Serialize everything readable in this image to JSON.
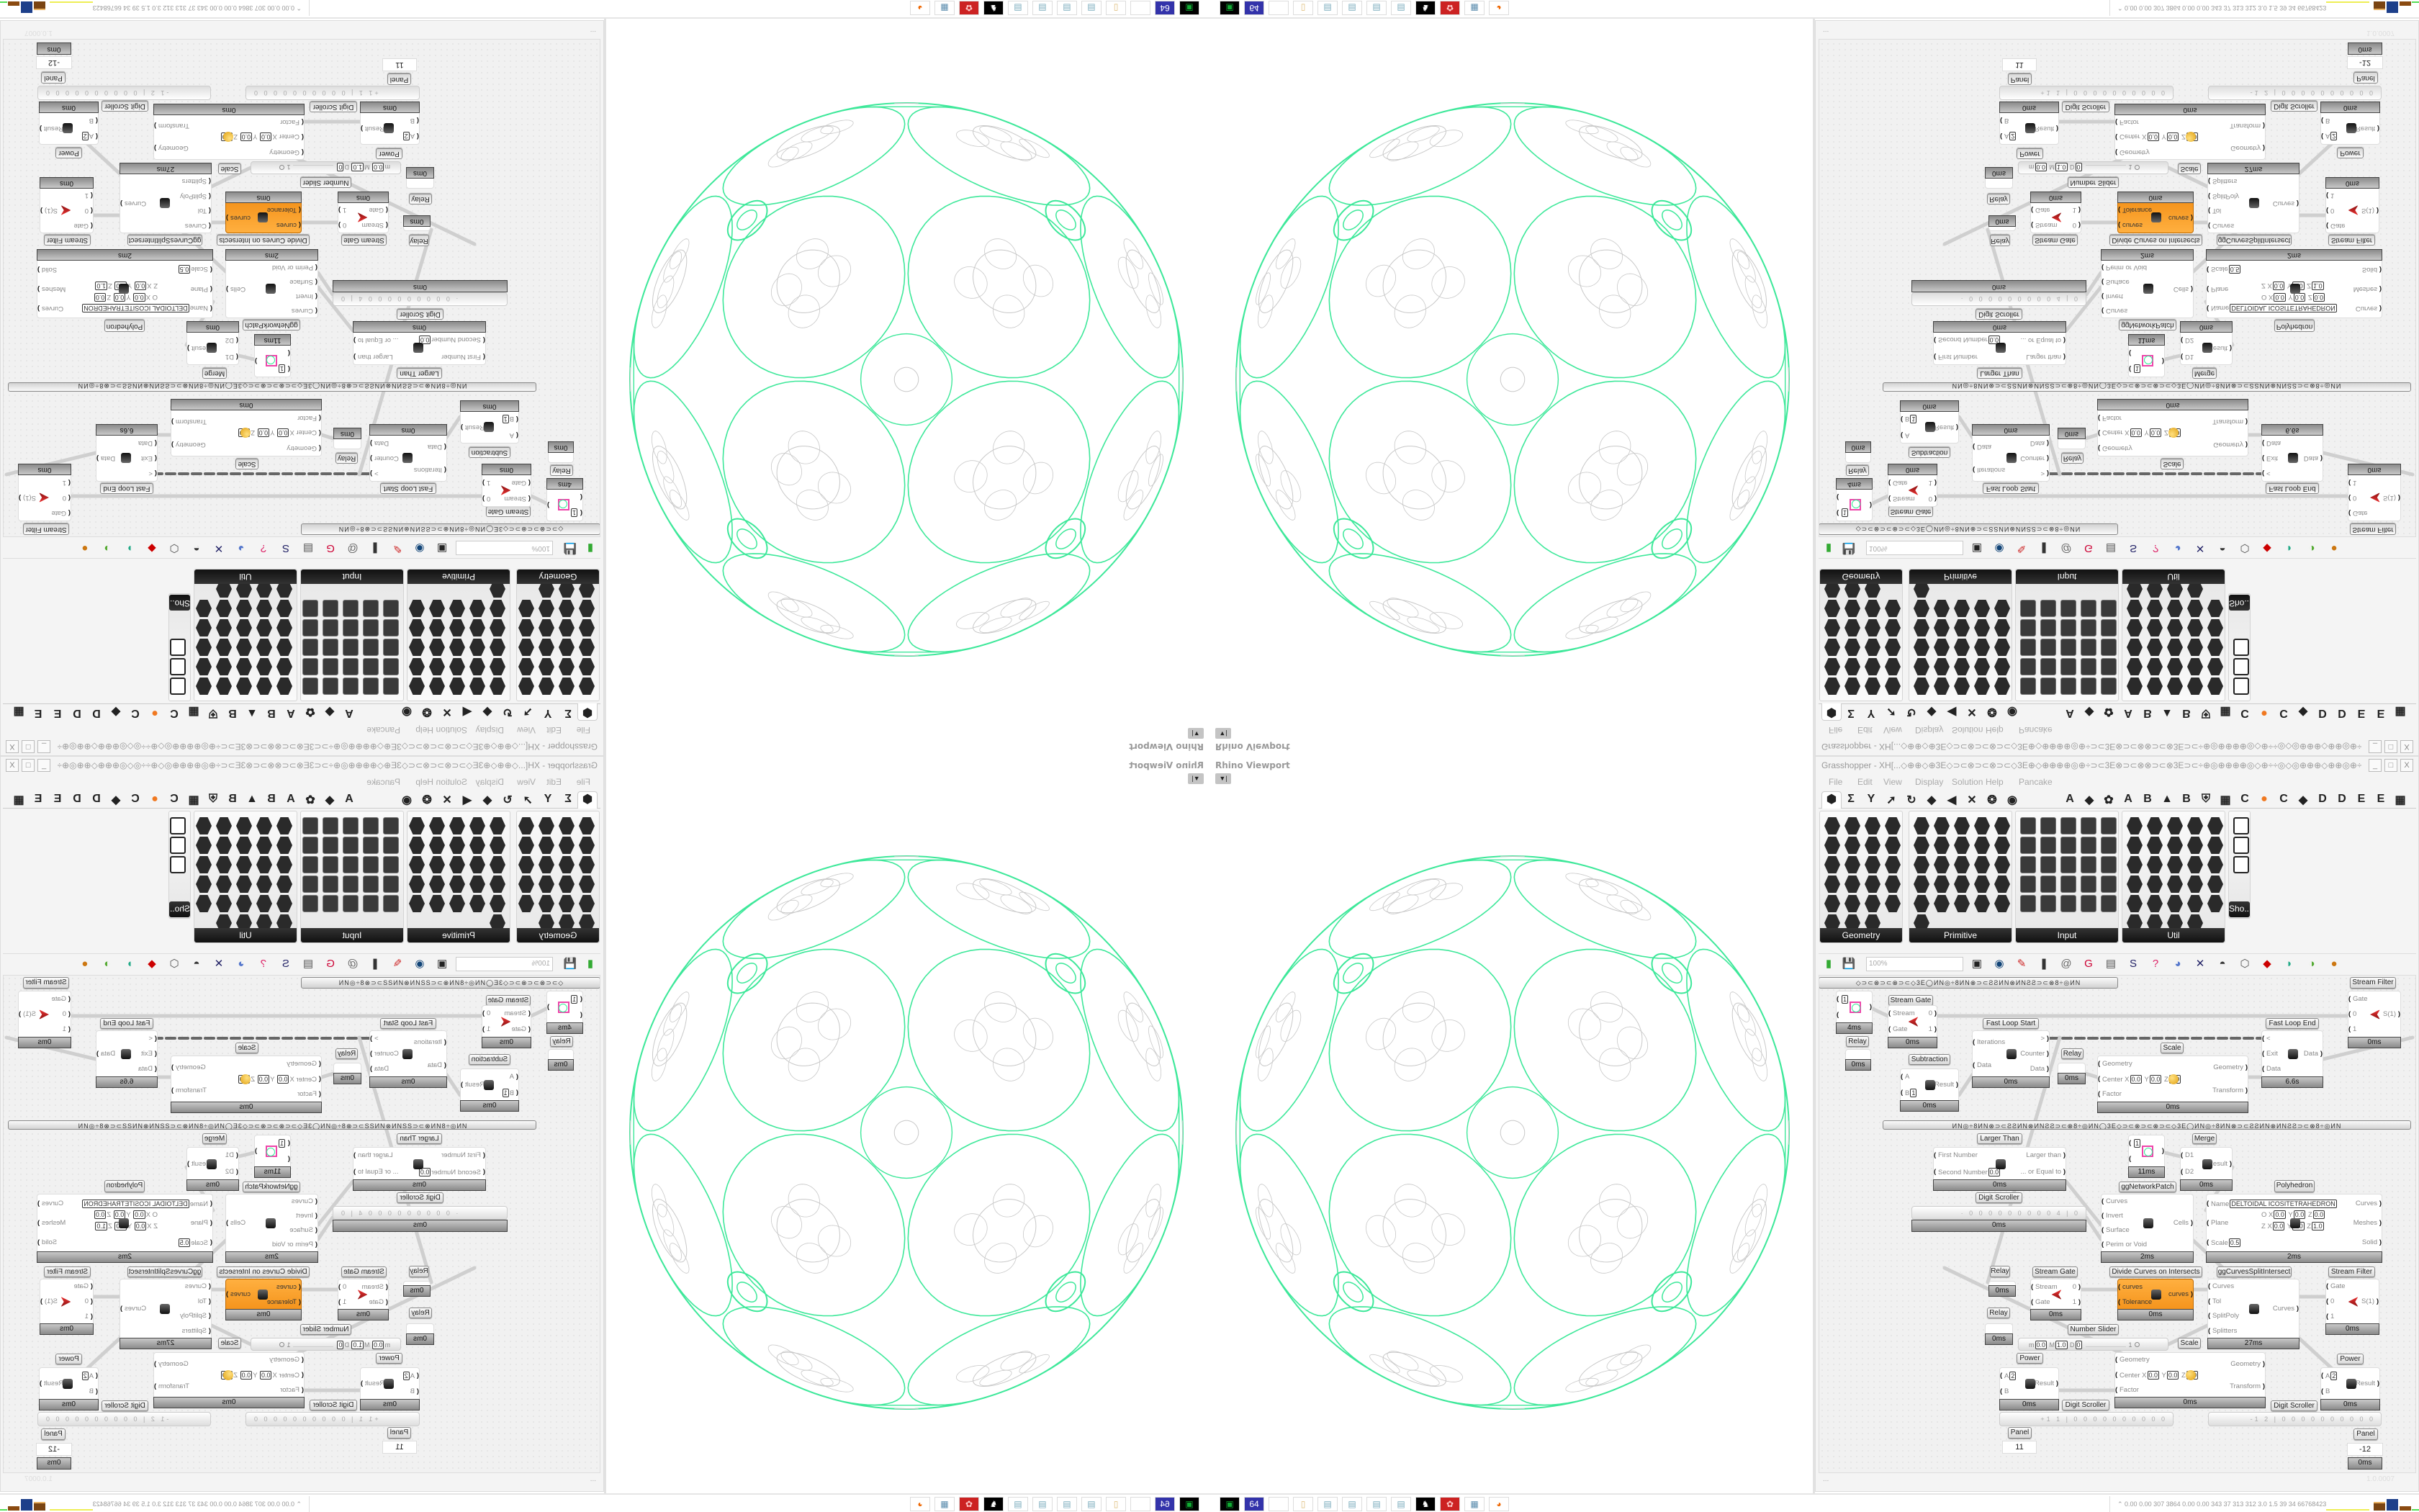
{
  "rhino": {
    "viewport_title": "Rhino Viewport",
    "dropdown_icon": "caret-down-icon",
    "colors": {
      "network_curves": "#3ee89a",
      "detail_curves": "#c8c8c8"
    }
  },
  "gh": {
    "title": "Grasshopper - XH[...◇⊕⊕◇⊕3E◇⊃⊂⊗⊃⊂⊗⊃⊂◇3E⊕◇⊕⊕⊕⊕◎⊕÷⊃⊂3E⊗⊃⊂⊗⊗⊃⊂⊗3E⊃⊂÷⊕◎⊕⊕⊕⊕◎◇⊕÷÷◎◇◎⊕⊕⊕◇⊕⊕◎⊕÷⊃⊂3E⊗⊃⊂...",
    "window_buttons": [
      "_",
      "□",
      "X"
    ],
    "menu": [
      "File",
      "Edit",
      "View",
      "Display",
      "Solution",
      "Help",
      "Pancake"
    ],
    "tabs_left": [
      "⬢",
      "Σ",
      "Y",
      "➚",
      "↻",
      "◆",
      "◀",
      "✕",
      "❂",
      "◉"
    ],
    "tabs_right": [
      "A",
      "◆",
      "✿",
      "A",
      "B",
      "▲",
      "B",
      "⛨",
      "▦",
      "C",
      "●",
      "C",
      "◆",
      "D",
      "D",
      "E",
      "E",
      "▦"
    ],
    "accent_tab_color": "#f07820",
    "panels": [
      {
        "label": "Geometry",
        "icon_count": 23
      },
      {
        "label": "Primitive",
        "icon_count": 26
      },
      {
        "label": "Input",
        "icon_count": 25
      },
      {
        "label": "Util",
        "icon_count": 29
      },
      {
        "label": "Sho..."
      }
    ],
    "toolbar": {
      "zoom": "100%"
    },
    "status": {
      "left": "...",
      "right": "1.0.0007"
    }
  },
  "canvas": {
    "group_bars": [
      "◇⊃⊂⊗⊃⊂⊗⊃⊂◇3E◯ИN◎÷8ИN⊗⊃⊂ƧƧИN⊗ИNƧƧ⊃⊂⊗8÷◎ИN",
      "ИN◎÷8ИN⊗⊃⊂ƧƧИN⊗ИNƧƧ⊃⊂⊗8÷◎ИN◯3E◇⊃⊂⊗⊃⊂⊗⊃⊂◇3E◯ИN◎÷8ИN⊗⊃⊂ƧƧИN⊗ИNƧƧ⊃⊂⊗8÷◎ИN"
    ],
    "labels": [
      "Stream Gate",
      "Fast Loop Start",
      "Fast Loop End",
      "Stream Filter",
      "Relay",
      "Subtraction",
      "Relay",
      "Scale",
      "Larger Than",
      "ggNetworkPatch",
      "Merge",
      "Polyhedron",
      "Digit Scroller",
      "Relay",
      "Stream Gate",
      "Divide Curves on Intersects",
      "ggCurvesSplitIntersect",
      "Stream Filter",
      "Relay",
      "Number Slider",
      "Scale",
      "Power",
      "Power",
      "Digit Scroller",
      "Digit Scroller",
      "Panel",
      "Panel"
    ],
    "components": [
      {
        "in": [
          {
            "l": "",
            "v": "1"
          },
          ""
        ],
        "out": [
          ""
        ],
        "time": "4ms",
        "icon": "preview-swatch-icon"
      },
      {
        "in": [
          "Stream",
          "Gate"
        ],
        "out": [
          "0",
          "1"
        ],
        "time": "0ms",
        "icon": "stream-gate-icon"
      },
      {
        "in": [],
        "out": [],
        "time": "0ms",
        "icon": "relay-icon"
      },
      {
        "in": [
          "Iterations",
          "Data"
        ],
        "out": [
          ">",
          "Counter",
          "Data"
        ],
        "time": "0ms",
        "icon": "loop-start-icon"
      },
      {
        "in": [
          "A",
          {
            "l": "B",
            "v": "1"
          }
        ],
        "out": [
          "Result"
        ],
        "time": "0ms",
        "icon": "minus-icon"
      },
      {
        "in": [],
        "out": [],
        "time": "0ms",
        "icon": "relay-icon"
      },
      {
        "in": [
          "Geometry",
          {
            "l": "Center",
            "xyz": [
              "0.0",
              "0.0",
              "0.0"
            ]
          },
          "Factor"
        ],
        "out": [
          "Geometry",
          "Transform"
        ],
        "time": "0ms",
        "icon": "scale-icon"
      },
      {
        "in": [
          "<",
          "Exit",
          "Data"
        ],
        "out": [
          "Data"
        ],
        "time": "6.6s",
        "icon": "loop-end-icon"
      },
      {
        "in": [
          "Gate",
          "0",
          "1"
        ],
        "out": [
          "S(1)"
        ],
        "time": "0ms",
        "icon": "stream-filter-icon"
      },
      {
        "in": [
          "First Number",
          {
            "l": "Second Number",
            "v": "0.0"
          }
        ],
        "out": [
          "Larger than",
          "... or Equal to"
        ],
        "time": "0ms",
        "icon": "greater-than-icon"
      },
      {
        "in": [
          {
            "l": "",
            "v": "1"
          },
          ""
        ],
        "out": [
          ""
        ],
        "time": "11ms",
        "icon": "preview-swatch-icon"
      },
      {
        "in": [
          "D1",
          "D2"
        ],
        "out": [
          "Result"
        ],
        "time": "0ms",
        "icon": "merge-icon"
      },
      {
        "in": [
          "Curves",
          "Invert",
          "Surface",
          "Perim or Void"
        ],
        "out": [
          "Cells"
        ],
        "time": "2ms",
        "icon": "network-patch-icon"
      },
      {
        "in": [
          {
            "l": "Name",
            "v": "DELTOIDAL ICOSITETRAHEDRON"
          },
          {
            "l": "Plane",
            "rows": [
              {
                "axis": "O",
                "xyz": [
                  "0.0",
                  "0.0",
                  "0.0"
                ]
              },
              {
                "axis": "Z",
                "xyz": [
                  "0.0",
                  "0.0",
                  "1.0"
                ]
              }
            ]
          },
          {
            "l": "Scale",
            "v": "0.5"
          }
        ],
        "out": [
          "Curves",
          "Meshes",
          "Solid"
        ],
        "time": "2ms",
        "icon": "polyhedron-icon"
      },
      {
        "in": [
          "Stream",
          "Gate"
        ],
        "out": [
          "0",
          "1"
        ],
        "time": "0ms",
        "icon": "stream-gate-icon"
      },
      {
        "in": [
          "curves",
          "Tolerance"
        ],
        "out": [
          "curves"
        ],
        "time": "0ms",
        "icon": "divide-curves-icon",
        "accent": "#f7941d"
      },
      {
        "in": [
          "Curves",
          "Tol",
          "SplitPoly",
          "Splitters"
        ],
        "out": [
          "Curves"
        ],
        "time": "27ms",
        "icon": "split-intersect-icon"
      },
      {
        "in": [
          "Gate",
          "0",
          "1"
        ],
        "out": [
          "S(1)"
        ],
        "time": "0ms",
        "icon": "stream-filter-icon"
      },
      {
        "in": [],
        "out": [],
        "time": "0ms",
        "icon": "relay-icon"
      },
      {
        "in": [],
        "out": [],
        "time": "0ms",
        "icon": "relay-icon"
      },
      {
        "in": [
          {
            "l": "A",
            "v": "2"
          },
          "B"
        ],
        "out": [
          "Result"
        ],
        "time": "0ms",
        "icon": "power-icon"
      },
      {
        "in": [
          "Geometry",
          {
            "l": "Center",
            "xyz": [
              "0.0",
              "0.0",
              "0.0"
            ]
          },
          "Factor"
        ],
        "out": [
          "Geometry",
          "Transform"
        ],
        "time": "0ms",
        "icon": "scale-icon"
      },
      {
        "in": [
          {
            "l": "A",
            "v": "2"
          },
          "B"
        ],
        "out": [
          "Result"
        ],
        "time": "0ms",
        "icon": "power-icon"
      }
    ],
    "slider": {
      "m": "0.0",
      "M": "1.0",
      "D": "0",
      "value": "1"
    },
    "scrollers": [
      {
        "digits": "· 0 0 0 0 0 0 0 0 0 4 | 0",
        "time": "0ms"
      },
      {
        "digits": "+1 1 | 0 0 0 0 0 0 0 0 0 0"
      },
      {
        "digits": "-1 2 | 0 0 0 0 0 0 0 0 0 0"
      }
    ],
    "panels": [
      {
        "value": "11"
      },
      {
        "value": "-12",
        "time": "0ms"
      }
    ]
  },
  "taskbar": {
    "apps": [
      "terminal-icon",
      "floppy-64-icon",
      "blank-icon",
      "folder-icon",
      "notepad-icon",
      "notepad-icon",
      "notepad-icon",
      "notepad-icon",
      "cat-icon",
      "red-app-icon",
      "calculator-icon",
      "firefox-icon"
    ],
    "stats": "0.00 0.00 307 3864 0.00 0.00 343 37 313 312 3.0 1.5 39 34 66768423",
    "expand_icon": "chevron-up-icon"
  }
}
